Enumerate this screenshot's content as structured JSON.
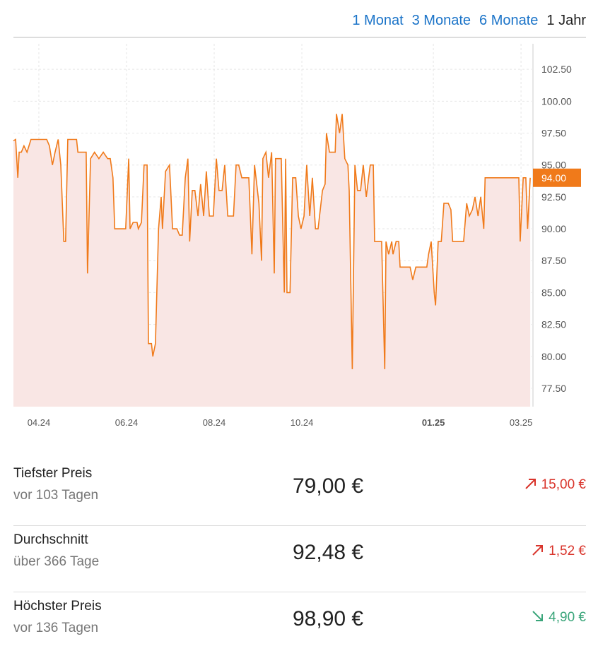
{
  "tabs": [
    "1 Monat",
    "3 Monate",
    "6 Monate",
    "1 Jahr"
  ],
  "active_tab": 3,
  "chart_data": {
    "type": "line",
    "color": "#f07a1a",
    "fill_color": "#f9e6e4",
    "grid": true,
    "xlim": [
      2.42,
      14.24
    ],
    "ylim": [
      76.06,
      104.5
    ],
    "xticks": [
      {
        "value": 3,
        "label": "04.24"
      },
      {
        "value": 5,
        "label": "06.24"
      },
      {
        "value": 7,
        "label": "08.24"
      },
      {
        "value": 9,
        "label": "10.24"
      },
      {
        "value": 12,
        "label": "01.25"
      },
      {
        "value": 14,
        "label": "03.25"
      }
    ],
    "yticks": [
      {
        "value": 77.5,
        "label": "77.50"
      },
      {
        "value": 80,
        "label": "80.00"
      },
      {
        "value": 82.5,
        "label": "82.50"
      },
      {
        "value": 85,
        "label": "85.00"
      },
      {
        "value": 87.5,
        "label": "87.50"
      },
      {
        "value": 90,
        "label": "90.00"
      },
      {
        "value": 92.5,
        "label": "92.50"
      },
      {
        "value": 95,
        "label": "95.00"
      },
      {
        "value": 97.5,
        "label": "97.50"
      },
      {
        "value": 100,
        "label": "100.00"
      },
      {
        "value": 102.5,
        "label": "102.50"
      }
    ],
    "current": {
      "value": 94,
      "label": "94.00",
      "color": "#f07a1a"
    },
    "x": [
      2.42,
      2.47,
      2.52,
      2.55,
      2.6,
      2.66,
      2.73,
      2.82,
      3.18,
      3.24,
      3.31,
      3.37,
      3.44,
      3.5,
      3.57,
      3.61,
      3.66,
      3.86,
      3.89,
      4.08,
      4.11,
      4.18,
      4.27,
      4.37,
      4.47,
      4.57,
      4.63,
      4.69,
      4.73,
      4.98,
      5.05,
      5.08,
      5.15,
      5.24,
      5.27,
      5.34,
      5.4,
      5.47,
      5.5,
      5.57,
      5.6,
      5.66,
      5.73,
      5.79,
      5.82,
      5.89,
      5.98,
      6.05,
      6.15,
      6.21,
      6.27,
      6.34,
      6.4,
      6.44,
      6.5,
      6.56,
      6.63,
      6.69,
      6.76,
      6.82,
      6.89,
      6.98,
      7.05,
      7.11,
      7.18,
      7.24,
      7.31,
      7.44,
      7.5,
      7.56,
      7.63,
      7.79,
      7.86,
      7.92,
      8.02,
      8.08,
      8.11,
      8.18,
      8.24,
      8.31,
      8.37,
      8.4,
      8.53,
      8.6,
      8.63,
      8.66,
      8.73,
      8.79,
      8.86,
      8.92,
      8.98,
      9.05,
      9.11,
      9.18,
      9.24,
      9.31,
      9.37,
      9.47,
      9.53,
      9.56,
      9.63,
      9.76,
      9.79,
      9.86,
      9.92,
      9.98,
      10.05,
      10.08,
      10.15,
      10.21,
      10.27,
      10.34,
      10.4,
      10.47,
      10.56,
      10.63,
      10.66,
      10.82,
      10.89,
      10.92,
      10.98,
      11.05,
      11.08,
      11.15,
      11.21,
      11.24,
      11.47,
      11.53,
      11.6,
      11.85,
      11.89,
      11.95,
      12.02,
      12.05,
      12.11,
      12.18,
      12.24,
      12.34,
      12.4,
      12.44,
      12.69,
      12.76,
      12.82,
      12.89,
      12.95,
      13.02,
      13.08,
      13.15,
      13.18,
      13.89,
      13.95,
      13.98,
      14.05,
      14.11,
      14.15,
      14.21
    ],
    "values": [
      96.9,
      97,
      94,
      96,
      96,
      96.5,
      96,
      97,
      97,
      96.5,
      95,
      96,
      97,
      95,
      89,
      89,
      97,
      97,
      96,
      96,
      86.5,
      95.5,
      96,
      95.5,
      96,
      95.5,
      95.5,
      94,
      90,
      90,
      95.5,
      90,
      90.5,
      90.5,
      90,
      90.5,
      95,
      95,
      81,
      81,
      80,
      81,
      90,
      92.5,
      90,
      94.5,
      95,
      90,
      90,
      89.5,
      89.5,
      94,
      95.5,
      89,
      93,
      93,
      91,
      93.5,
      91,
      94.5,
      91,
      91,
      95.5,
      93,
      93,
      95,
      91,
      91,
      95,
      95,
      94,
      94,
      88,
      95,
      92,
      87.5,
      95.5,
      96,
      94,
      96,
      86.5,
      95.5,
      95.5,
      85,
      95.5,
      85,
      85,
      94,
      94,
      91,
      90,
      91,
      95,
      91,
      94,
      90,
      90,
      93,
      93.5,
      97.5,
      96,
      96,
      99,
      97.5,
      99,
      95.5,
      95,
      93,
      79,
      95,
      93,
      93,
      95,
      92.5,
      95,
      95,
      89,
      89,
      79,
      89,
      88,
      89,
      88,
      89,
      89,
      87,
      87,
      86,
      87,
      87,
      88,
      89,
      85,
      84,
      89,
      89,
      92,
      92,
      91.5,
      89,
      89,
      92,
      91,
      91.5,
      92.5,
      91,
      92.5,
      90,
      94,
      94,
      94,
      89,
      94,
      94,
      90,
      94
    ]
  },
  "stats": [
    {
      "label": "Tiefster Preis",
      "sub": "vor 103 Tagen",
      "price": "79,00 €",
      "change": "15,00 €",
      "color": "#d9342b"
    },
    {
      "label": "Durchschnitt",
      "sub": "über 366 Tage",
      "price": "92,48 €",
      "change": "1,52 €",
      "color": "#d9342b"
    },
    {
      "label": "Höchster Preis",
      "sub": "vor 136 Tagen",
      "price": "98,90 €",
      "change": "4,90 €",
      "color": "#3aa57a"
    }
  ]
}
